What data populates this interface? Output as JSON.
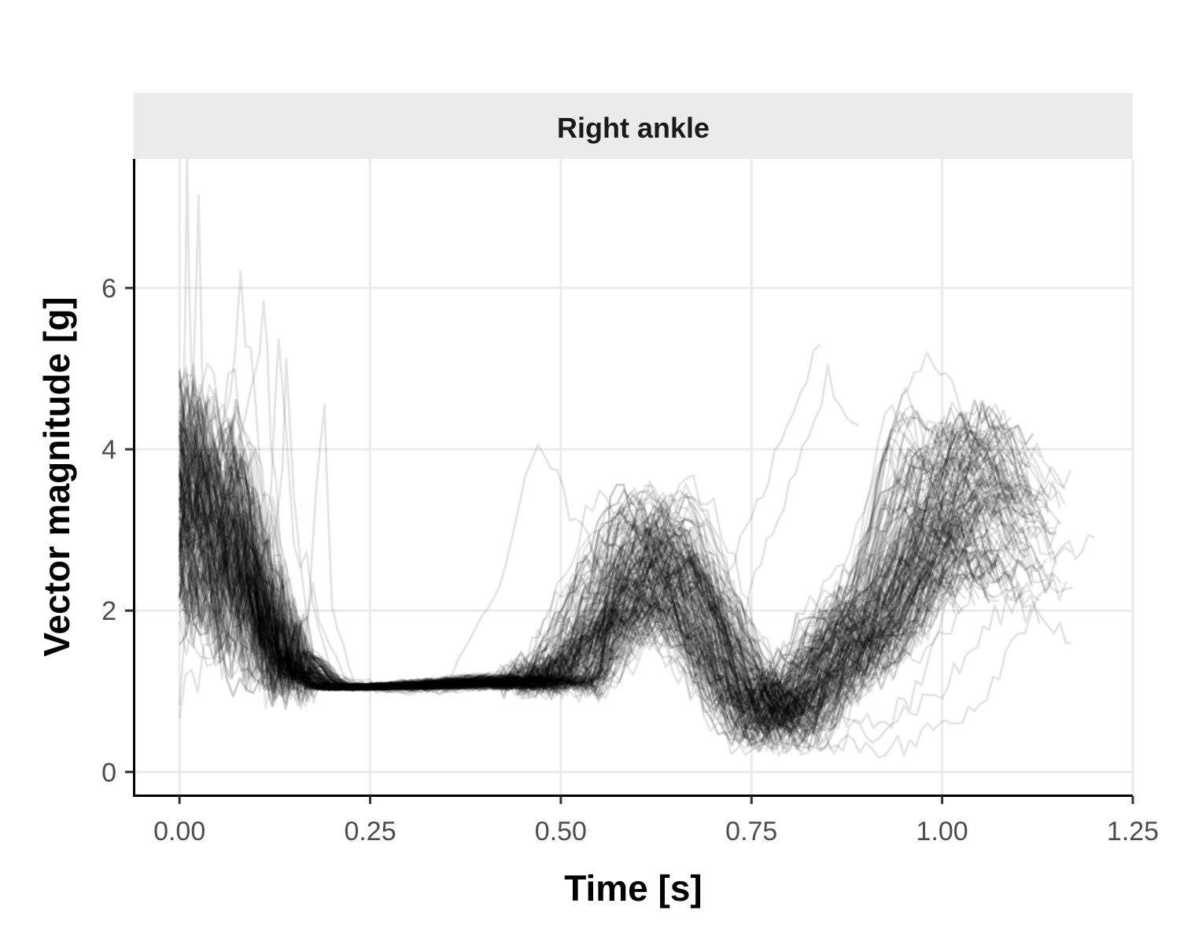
{
  "chart_data": {
    "type": "line",
    "title": "",
    "facet_label": "Right ankle",
    "xlabel": "Time [s]",
    "ylabel": "Vector magnitude [g]",
    "xlim": [
      -0.06,
      1.25
    ],
    "ylim": [
      -0.28,
      7.6
    ],
    "x_ticks": [
      0.0,
      0.25,
      0.5,
      0.75,
      1.0,
      1.25
    ],
    "x_tick_labels": [
      "0.00",
      "0.25",
      "0.50",
      "0.75",
      "1.00",
      "1.25"
    ],
    "y_ticks": [
      0,
      2,
      4,
      6
    ],
    "y_tick_labels": [
      "0",
      "2",
      "4",
      "6"
    ],
    "grid": true,
    "legend": "none",
    "line_color": "#000000",
    "line_opacity": 0.1,
    "series_note": "approximately 200 overlaid gait-cycle traces",
    "series": [
      {
        "x": [
          0.0,
          0.05,
          0.1,
          0.15,
          0.2,
          0.3,
          0.45,
          0.55,
          0.62,
          0.7,
          0.77,
          0.85,
          0.95,
          1.03,
          1.1
        ],
        "y": [
          3.3,
          2.6,
          2.0,
          1.2,
          1.05,
          1.02,
          1.1,
          1.6,
          2.6,
          2.0,
          0.8,
          0.9,
          2.6,
          3.6,
          3.3
        ]
      },
      {
        "x": [
          0.0,
          0.04,
          0.09,
          0.14,
          0.2,
          0.32,
          0.48,
          0.58,
          0.64,
          0.72,
          0.8,
          0.9,
          1.0,
          1.08
        ],
        "y": [
          3.8,
          3.0,
          2.2,
          1.3,
          1.1,
          1.03,
          1.2,
          1.9,
          3.0,
          1.8,
          0.6,
          1.5,
          3.4,
          3.8
        ]
      },
      {
        "x": [
          0.0,
          0.06,
          0.12,
          0.18,
          0.3,
          0.5,
          0.6,
          0.66,
          0.74,
          0.82,
          0.92,
          1.02,
          1.12
        ],
        "y": [
          2.7,
          2.8,
          1.5,
          1.1,
          1.0,
          1.1,
          1.7,
          2.9,
          1.6,
          0.7,
          1.2,
          3.1,
          3.2
        ]
      },
      {
        "x": [
          0.0,
          0.03,
          0.08,
          0.13,
          0.19,
          0.35,
          0.5,
          0.58,
          0.6,
          0.68,
          0.76,
          0.84,
          0.93,
          1.01,
          1.09
        ],
        "y": [
          4.2,
          3.2,
          2.6,
          1.5,
          1.1,
          1.02,
          1.3,
          2.2,
          3.2,
          2.6,
          0.7,
          0.6,
          2.0,
          3.9,
          3.5
        ]
      },
      {
        "x": [
          0.0,
          0.05,
          0.11,
          0.16,
          0.25,
          0.45,
          0.55,
          0.63,
          0.71,
          0.79,
          0.88,
          0.98,
          1.06
        ],
        "y": [
          3.0,
          2.4,
          1.8,
          1.1,
          1.03,
          1.05,
          1.5,
          2.4,
          2.3,
          0.9,
          0.8,
          2.8,
          3.0
        ]
      },
      {
        "x": [
          0.0,
          0.02,
          0.07,
          0.12,
          0.17,
          0.3,
          0.47,
          0.56,
          0.62,
          0.69,
          0.78,
          0.87,
          0.97,
          1.05
        ],
        "y": [
          2.2,
          3.6,
          3.1,
          1.7,
          1.2,
          1.02,
          1.15,
          1.8,
          2.7,
          2.2,
          0.5,
          0.9,
          3.3,
          4.1
        ]
      },
      {
        "x": [
          0.0,
          0.06,
          0.1,
          0.15,
          0.22,
          0.4,
          0.52,
          0.59,
          0.65,
          0.73,
          0.81,
          0.91,
          1.0,
          1.1
        ],
        "y": [
          3.5,
          3.1,
          2.0,
          1.3,
          1.05,
          1.04,
          1.4,
          2.3,
          2.8,
          1.3,
          0.5,
          1.6,
          3.0,
          3.6
        ]
      },
      {
        "x": [
          0.0,
          0.04,
          0.1,
          0.16,
          0.25,
          0.42,
          0.5,
          0.56,
          0.6,
          0.66,
          0.75,
          0.83,
          0.92,
          1.0,
          1.07
        ],
        "y": [
          3.1,
          2.9,
          1.9,
          1.15,
          1.02,
          1.1,
          1.4,
          1.9,
          2.5,
          2.6,
          0.9,
          0.6,
          1.8,
          3.7,
          3.9
        ]
      },
      {
        "x": [
          0.0,
          0.05,
          0.09,
          0.14,
          0.21,
          0.35,
          0.48,
          0.57,
          0.64,
          0.7,
          0.8,
          0.89,
          0.99,
          1.07,
          1.14
        ],
        "y": [
          2.9,
          2.5,
          2.4,
          1.4,
          1.1,
          1.0,
          1.2,
          1.9,
          3.1,
          2.3,
          0.8,
          1.0,
          2.4,
          3.6,
          3.1
        ]
      },
      {
        "x": [
          0.0,
          0.03,
          0.06,
          0.11,
          0.16,
          0.28,
          0.46,
          0.54,
          0.61,
          0.68,
          0.76,
          0.86,
          0.96,
          1.04
        ],
        "y": [
          3.9,
          3.4,
          2.7,
          2.1,
          1.2,
          1.03,
          1.1,
          1.6,
          2.9,
          2.4,
          0.7,
          0.7,
          2.5,
          4.0
        ]
      },
      {
        "x": [
          0.0,
          0.02,
          0.05,
          0.1,
          0.15,
          0.3,
          0.45,
          0.52,
          0.58,
          0.65,
          0.72,
          0.8,
          0.9,
          1.0,
          1.1,
          1.17
        ],
        "y": [
          1.1,
          2.6,
          3.1,
          2.0,
          1.3,
          1.0,
          1.1,
          1.5,
          2.1,
          2.8,
          2.0,
          0.7,
          0.5,
          1.0,
          2.3,
          1.6
        ]
      },
      {
        "x": [
          0.0,
          0.05,
          0.1,
          0.15,
          0.22,
          0.35,
          0.44,
          0.5,
          0.56,
          0.62,
          0.7,
          0.78,
          0.87,
          0.95,
          1.05,
          1.13
        ],
        "y": [
          2.5,
          2.3,
          1.7,
          1.2,
          1.05,
          1.0,
          1.3,
          2.2,
          3.0,
          2.4,
          1.1,
          0.6,
          0.4,
          0.8,
          2.5,
          3.0
        ]
      },
      {
        "x": [
          0.0,
          0.04,
          0.08,
          0.13,
          0.2,
          0.3,
          0.4,
          0.47,
          0.52,
          0.6,
          0.68,
          0.76,
          0.85,
          0.95,
          1.05,
          1.15,
          1.2
        ],
        "y": [
          0.7,
          1.6,
          1.9,
          1.3,
          1.1,
          1.02,
          1.05,
          1.2,
          1.6,
          2.3,
          1.8,
          0.8,
          0.4,
          0.3,
          0.9,
          2.6,
          2.9
        ]
      },
      {
        "x": [
          0.0,
          0.05,
          0.1,
          0.17,
          0.25,
          0.35,
          0.42,
          0.47,
          0.52,
          0.6,
          0.67,
          0.72,
          0.78,
          0.84
        ],
        "y": [
          3.2,
          2.7,
          1.9,
          1.1,
          1.05,
          1.1,
          2.3,
          4.2,
          3.0,
          2.2,
          1.0,
          2.5,
          3.9,
          5.3
        ]
      },
      {
        "x": [
          0.0,
          0.04,
          0.09,
          0.15,
          0.22,
          0.34,
          0.48,
          0.6,
          0.67,
          0.74,
          0.8,
          0.85,
          0.89
        ],
        "y": [
          3.6,
          2.9,
          2.1,
          1.2,
          1.05,
          1.02,
          1.2,
          2.1,
          2.6,
          2.0,
          3.6,
          4.9,
          4.3
        ]
      },
      {
        "x": [
          0.0,
          0.06,
          0.12,
          0.18,
          0.28,
          0.45,
          0.57,
          0.64,
          0.72,
          0.8,
          0.86,
          0.93,
          0.98,
          1.03,
          1.08
        ],
        "y": [
          2.8,
          2.4,
          1.6,
          1.1,
          1.02,
          1.1,
          1.7,
          2.4,
          1.4,
          0.6,
          1.3,
          4.1,
          5.3,
          4.4,
          3.6
        ]
      },
      {
        "x": [
          0.0,
          0.03,
          0.08,
          0.14,
          0.2,
          0.33,
          0.5,
          0.59,
          0.66,
          0.74,
          0.83,
          0.92,
          1.01,
          1.09
        ],
        "y": [
          4.5,
          3.7,
          2.8,
          1.5,
          1.15,
          1.03,
          1.3,
          2.0,
          2.8,
          1.5,
          0.6,
          1.4,
          3.6,
          4.4
        ]
      }
    ],
    "peaks": [
      {
        "x": [
          0.0,
          0.005,
          0.01,
          0.015,
          0.02,
          0.03,
          0.05,
          0.08,
          0.12,
          0.16
        ],
        "y": [
          3.0,
          4.5,
          7.3,
          5.5,
          4.0,
          3.3,
          2.8,
          2.2,
          1.4,
          1.1
        ]
      },
      {
        "x": [
          0.0,
          0.01,
          0.02,
          0.025,
          0.03,
          0.04,
          0.06,
          0.09,
          0.13,
          0.17
        ],
        "y": [
          2.8,
          3.5,
          5.2,
          7.1,
          5.0,
          3.5,
          2.6,
          2.0,
          1.3,
          1.1
        ]
      },
      {
        "x": [
          0.0,
          0.03,
          0.06,
          0.08,
          0.1,
          0.12,
          0.15,
          0.19
        ],
        "y": [
          2.9,
          3.1,
          4.2,
          6.0,
          4.4,
          2.3,
          1.3,
          1.1
        ]
      },
      {
        "x": [
          0.0,
          0.04,
          0.07,
          0.1,
          0.11,
          0.12,
          0.14,
          0.18
        ],
        "y": [
          3.2,
          2.8,
          3.6,
          4.8,
          5.8,
          4.2,
          2.0,
          1.2
        ]
      },
      {
        "x": [
          0.0,
          0.05,
          0.09,
          0.12,
          0.13,
          0.15,
          0.2
        ],
        "y": [
          3.5,
          2.6,
          2.3,
          3.2,
          5.4,
          3.0,
          1.2
        ]
      },
      {
        "x": [
          0.0,
          0.06,
          0.1,
          0.13,
          0.14,
          0.16,
          0.22
        ],
        "y": [
          3.0,
          2.5,
          2.1,
          3.0,
          4.8,
          2.4,
          1.1
        ]
      },
      {
        "x": [
          0.0,
          0.08,
          0.14,
          0.16,
          0.18,
          0.19,
          0.2,
          0.23
        ],
        "y": [
          2.9,
          2.2,
          1.2,
          0.8,
          3.6,
          4.5,
          2.0,
          1.1
        ]
      }
    ]
  }
}
